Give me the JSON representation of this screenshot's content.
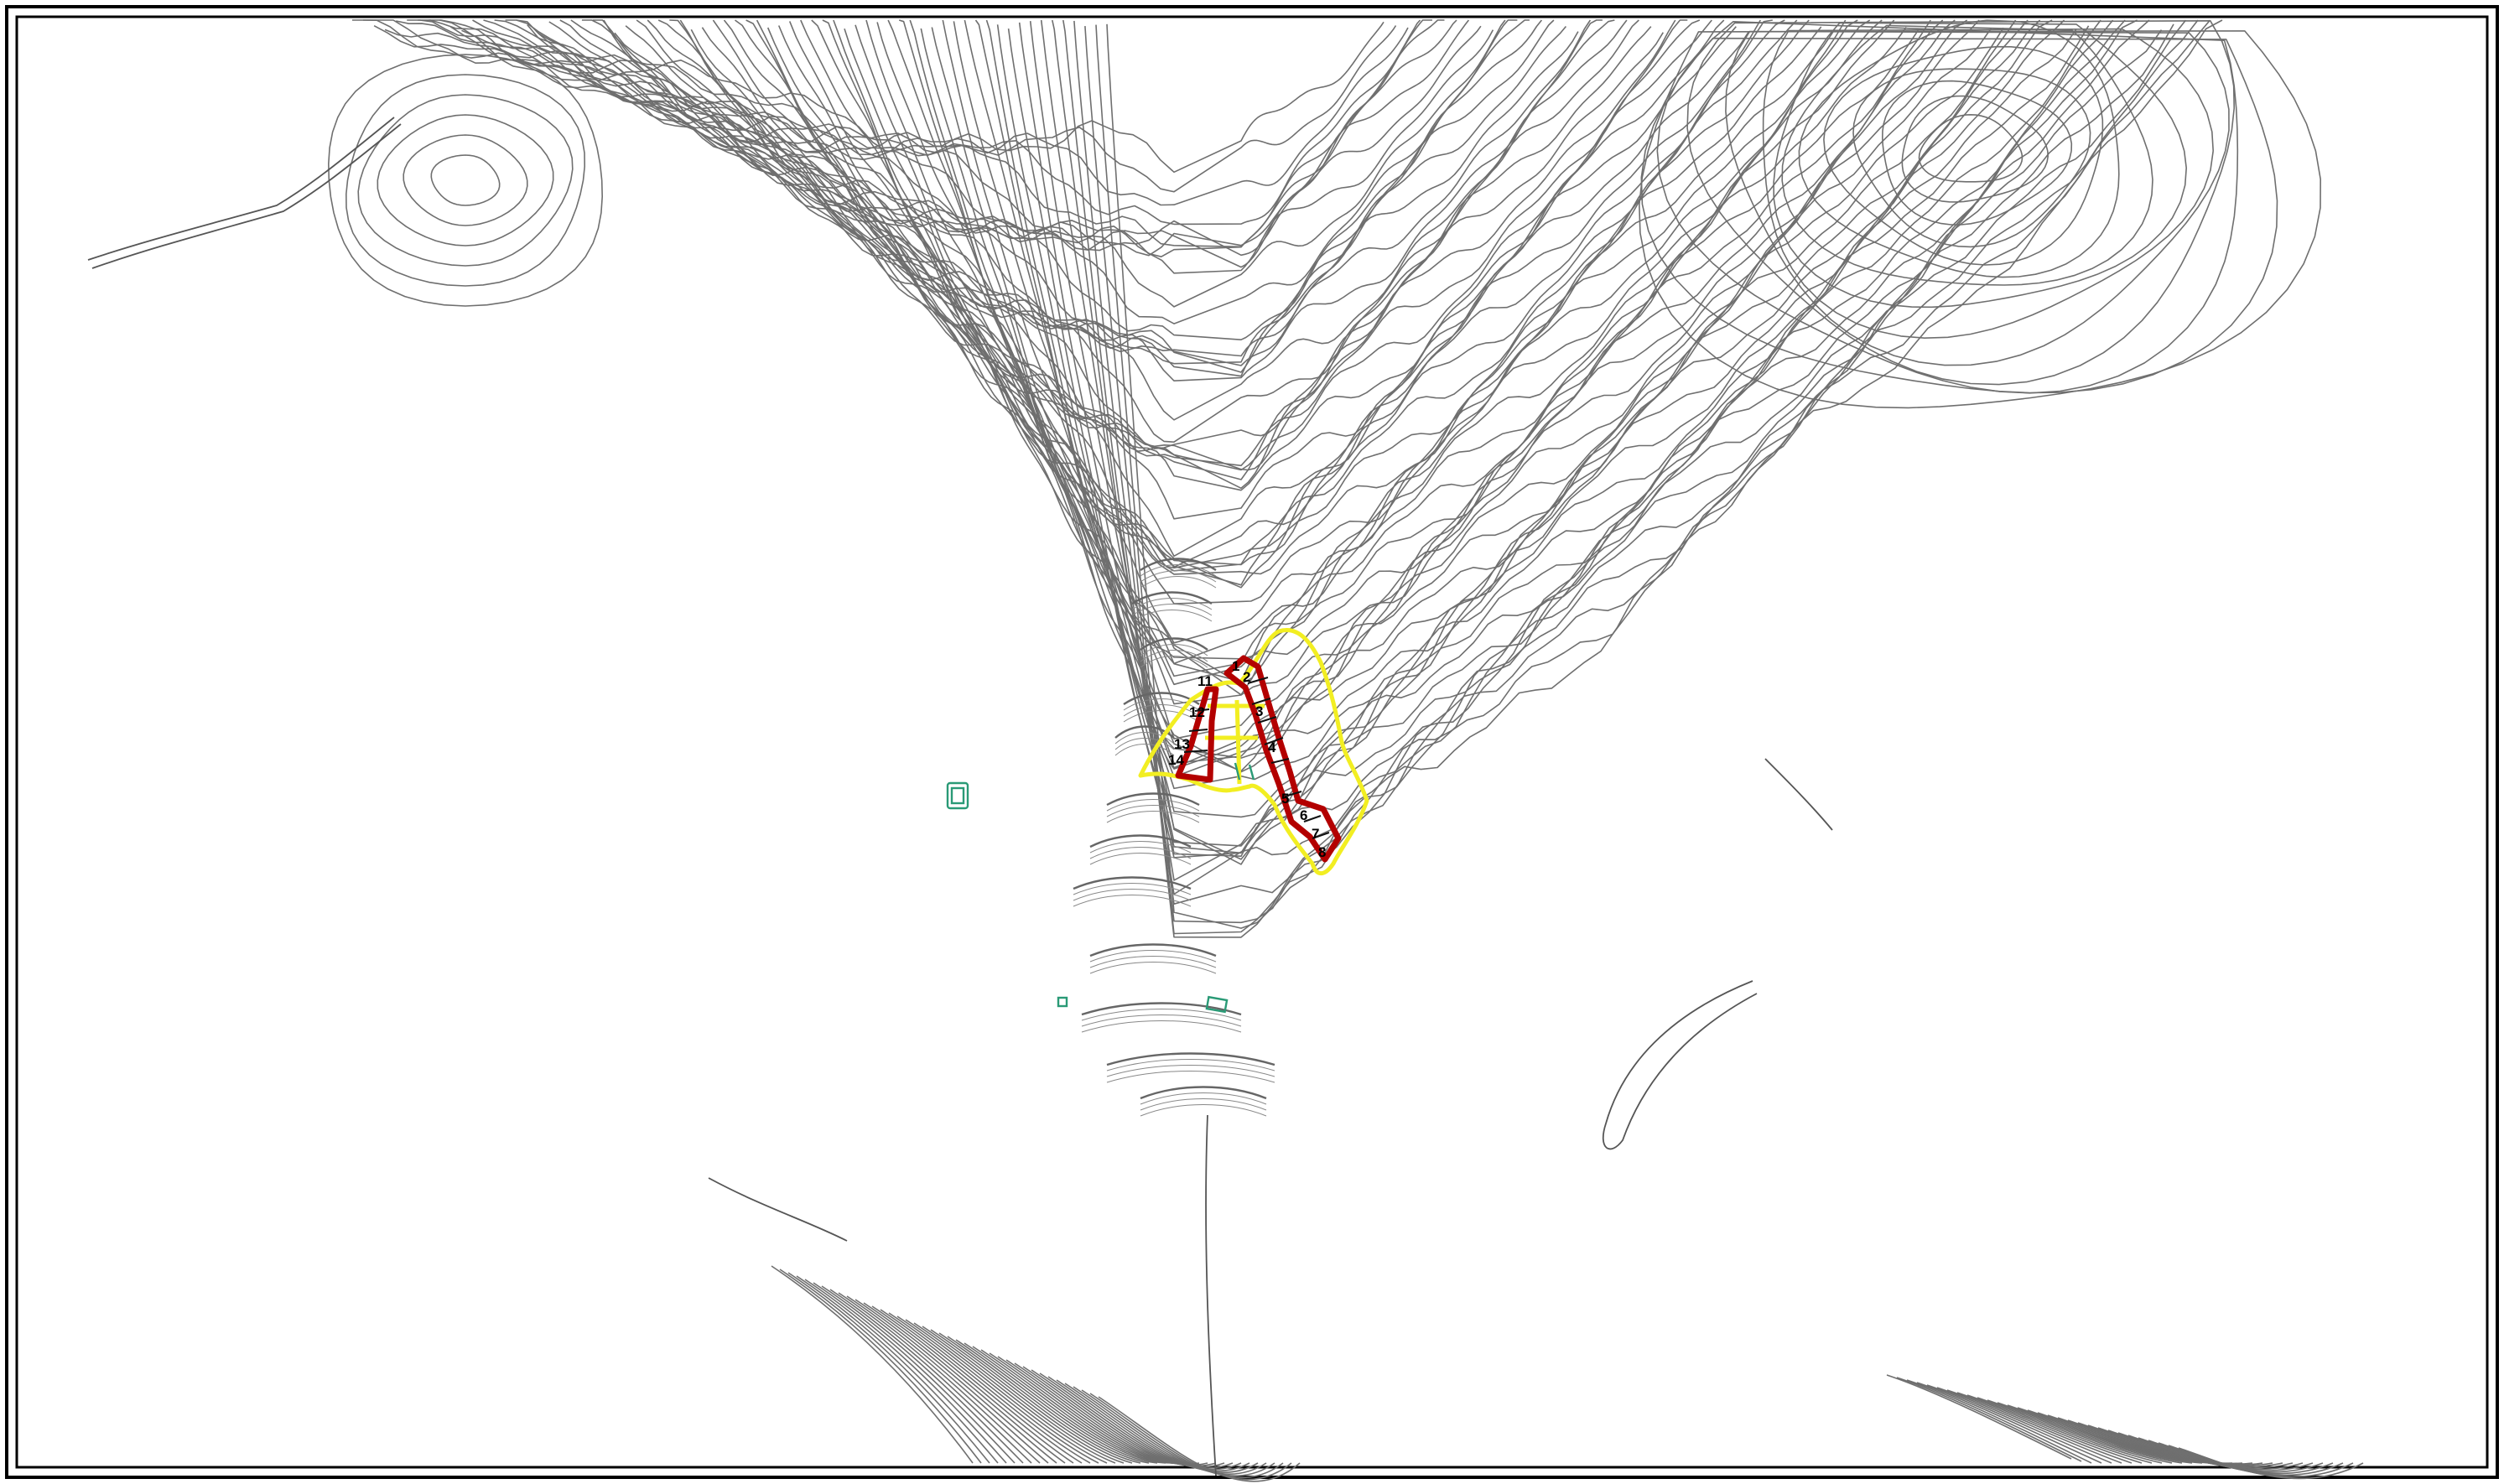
{
  "map": {
    "colors": {
      "contour": "#6f6f6f",
      "boundary": "#f2ee22",
      "parcel": "#b30000",
      "structure": "#2a9a76",
      "frame": "#000000",
      "background": "#ffffff"
    },
    "plot_labels": [
      "1",
      "2",
      "3",
      "4",
      "5",
      "6",
      "7",
      "8",
      "11",
      "12",
      "13",
      "14"
    ]
  }
}
